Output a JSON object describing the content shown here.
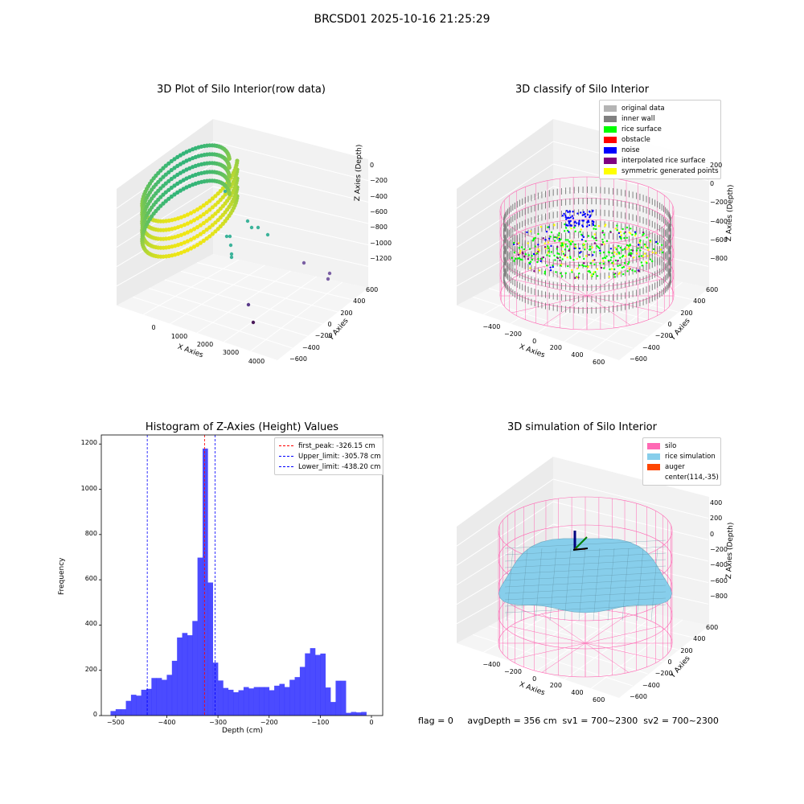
{
  "suptitle": "BRCSD01 2025-10-16 21:25:29",
  "footer": "flag = 0     avgDepth = 356 cm  sv1 = 700~2300  sv2 = 700~2300",
  "colors": {
    "hist": "#3232ff",
    "peak": "#ff0000",
    "limit": "#0000ff",
    "silo": "#ff69b4",
    "rice": "#87ceeb",
    "auger": "#ff4500"
  },
  "chart_data": [
    {
      "type": "scatter",
      "projection": "3d",
      "title": "3D Plot of Silo Interior(row data)",
      "xlabel": "X Axies",
      "ylabel": "Y Axies",
      "zlabel": "Z Axies (Depth)",
      "xticks": [
        "0",
        "1000",
        "2000",
        "3000",
        "4000"
      ],
      "yticks": [
        "600",
        "400",
        "200",
        "0",
        "−200",
        "−400",
        "−600"
      ],
      "zticks": [
        "0",
        "−200",
        "−400",
        "−600",
        "−800",
        "−1000",
        "−1200"
      ],
      "colormap": "viridis"
    },
    {
      "type": "scatter",
      "projection": "3d",
      "title": "3D classify of Silo Interior",
      "xlabel": "X Axies",
      "ylabel": "Y Axies",
      "zlabel": "Z Axies (Depth)",
      "xticks": [
        "−400",
        "−200",
        "0",
        "200",
        "400",
        "600"
      ],
      "yticks": [
        "600",
        "400",
        "200",
        "0",
        "−200",
        "−400",
        "−600"
      ],
      "zticks": [
        "200",
        "0",
        "−200",
        "−400",
        "−600",
        "−800"
      ],
      "legend": [
        {
          "label": "original data",
          "color": "#b4b4b4"
        },
        {
          "label": "inner wall",
          "color": "#808080"
        },
        {
          "label": "rice surface",
          "color": "#00ff00"
        },
        {
          "label": "obstacle",
          "color": "#ff0000"
        },
        {
          "label": "noise",
          "color": "#0000ff"
        },
        {
          "label": "interpolated rice surface",
          "color": "#800080"
        },
        {
          "label": "symmetric generated points",
          "color": "#ffff00"
        }
      ]
    },
    {
      "type": "bar",
      "title": "Histogram of Z-Axies (Height) Values",
      "xlabel": "Depth (cm)",
      "ylabel": "Frequency",
      "xlim": [
        -528,
        22
      ],
      "ylim": [
        0,
        1240
      ],
      "xticks": [
        -500,
        -400,
        -300,
        -200,
        -100,
        0
      ],
      "yticks": [
        0,
        200,
        400,
        600,
        800,
        1000,
        1200
      ],
      "bin_width": 10,
      "bin_start": -510,
      "values": [
        20,
        28,
        28,
        65,
        92,
        88,
        114,
        118,
        166,
        166,
        158,
        180,
        242,
        345,
        365,
        355,
        418,
        698,
        1180,
        588,
        234,
        155,
        122,
        114,
        103,
        112,
        126,
        120,
        126,
        126,
        126,
        112,
        132,
        140,
        126,
        158,
        170,
        215,
        275,
        298,
        268,
        274,
        124,
        60,
        154,
        154,
        12,
        16,
        14,
        16
      ],
      "vlines": [
        {
          "label": "first_peak: -326.15 cm",
          "x": -326.15,
          "color": "#ff0000"
        },
        {
          "label": "Upper_limit: -305.78 cm",
          "x": -305.78,
          "color": "#0000ff"
        },
        {
          "label": "Lower_limit: -438.20 cm",
          "x": -438.2,
          "color": "#0000ff"
        }
      ]
    },
    {
      "type": "area",
      "projection": "3d",
      "title": "3D simulation of Silo Interior",
      "xlabel": "X Axies",
      "ylabel": "Y Axies",
      "zlabel": "Z Axies (Depth)",
      "xticks": [
        "−400",
        "−200",
        "0",
        "200",
        "400",
        "600"
      ],
      "yticks": [
        "600",
        "400",
        "200",
        "0",
        "−200",
        "−400",
        "−600"
      ],
      "zticks": [
        "400",
        "200",
        "0",
        "−200",
        "−400",
        "−600",
        "−800"
      ],
      "legend": [
        {
          "label": "silo",
          "color": "#ff69b4"
        },
        {
          "label": "rice simulation",
          "color": "#87ceeb"
        },
        {
          "label": "auger",
          "color": "#ff4500"
        },
        {
          "label": "center(114,-35)",
          "color": ""
        }
      ]
    }
  ]
}
